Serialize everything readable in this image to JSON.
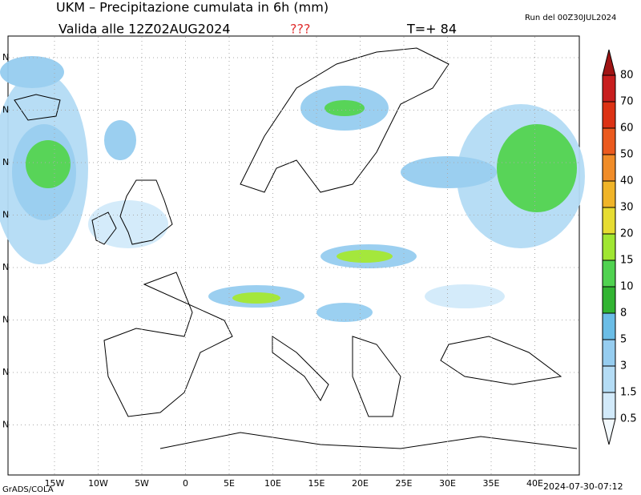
{
  "header": {
    "title": "UKM  –  Precipitazione cumulata in 6h (mm)",
    "valid": "Valida alle 12Z02AUG2024",
    "flag": "???",
    "lead": "T=+ 84",
    "run": "Run del 00Z30JUL2024"
  },
  "longitude_labels": [
    "15W",
    "10W",
    "5W",
    "0",
    "5E",
    "10E",
    "15E",
    "20E",
    "25E",
    "30E",
    "35E",
    "40E"
  ],
  "latitude_labels": [
    "N",
    "N",
    "N",
    "N",
    "N",
    "N",
    "N",
    "N"
  ],
  "colorbar": {
    "levels": [
      0.5,
      1.5,
      3,
      5,
      8,
      10,
      15,
      20,
      30,
      40,
      50,
      60,
      70,
      80
    ],
    "colors": [
      "#f4fafe",
      "#d2eafa",
      "#b4dcf5",
      "#96cdf0",
      "#6bbde6",
      "#32b432",
      "#50d250",
      "#a0e632",
      "#e6dc32",
      "#f0b428",
      "#f08c28",
      "#eb5a1e",
      "#dc3214",
      "#c81e1e",
      "#a01414"
    ]
  },
  "footer": {
    "left": "GrADS/COLA",
    "right": "2024-07-30-07:12"
  }
}
